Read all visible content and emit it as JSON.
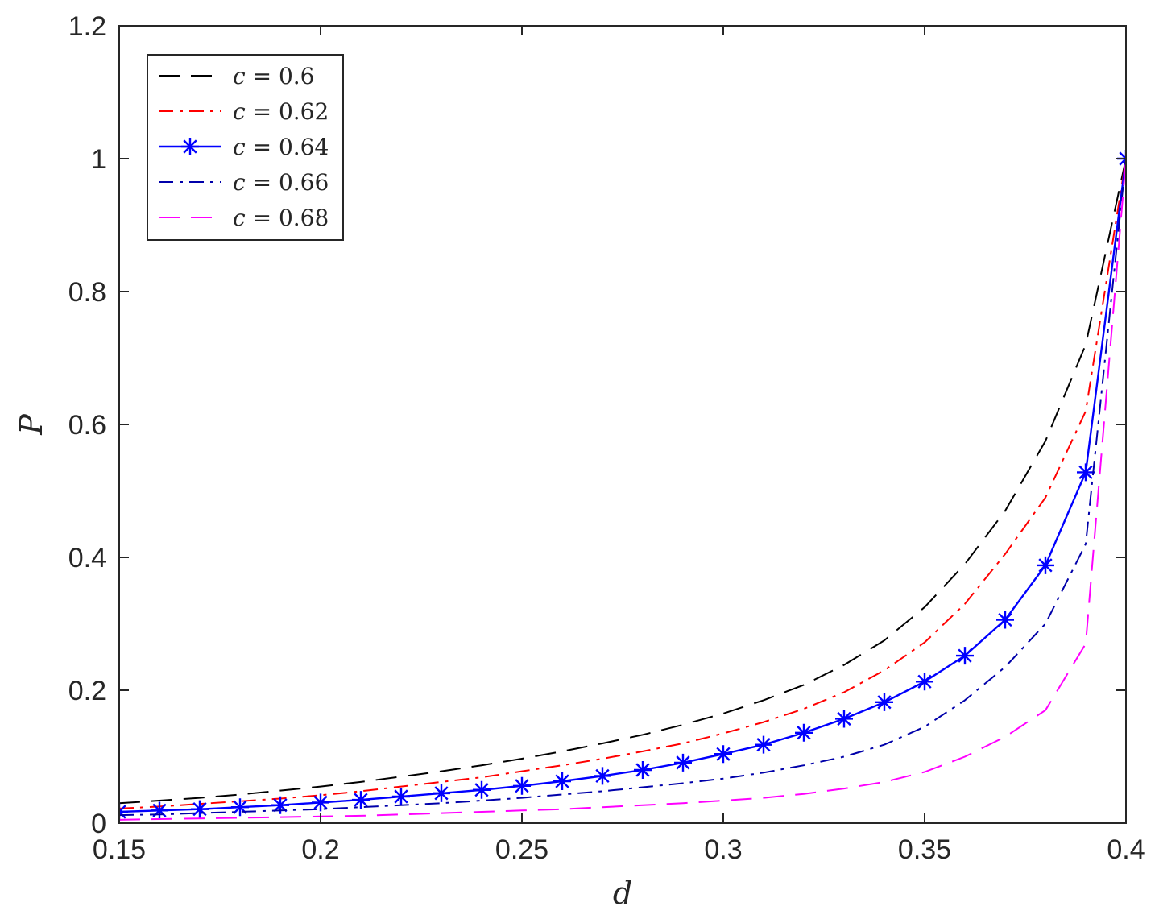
{
  "chart_data": {
    "type": "line",
    "title": "",
    "xlabel": "d",
    "ylabel": "P",
    "xlim": [
      0.15,
      0.4
    ],
    "ylim": [
      0,
      1.2
    ],
    "xticks": [
      "0.15",
      "0.2",
      "0.25",
      "0.3",
      "0.35",
      "0.4"
    ],
    "yticks": [
      "0",
      "0.2",
      "0.4",
      "0.6",
      "0.8",
      "1",
      "1.2"
    ],
    "grid": false,
    "legend_position": "top-left",
    "x": [
      0.15,
      0.16,
      0.17,
      0.18,
      0.19,
      0.2,
      0.21,
      0.22,
      0.23,
      0.24,
      0.25,
      0.26,
      0.27,
      0.28,
      0.29,
      0.3,
      0.31,
      0.32,
      0.33,
      0.34,
      0.35,
      0.36,
      0.37,
      0.38,
      0.39,
      0.4
    ],
    "series": [
      {
        "name": "c = 0.6",
        "color": "#000000",
        "style": "dashed",
        "values": [
          0.03,
          0.034,
          0.038,
          0.043,
          0.049,
          0.055,
          0.062,
          0.07,
          0.078,
          0.087,
          0.097,
          0.108,
          0.12,
          0.133,
          0.148,
          0.165,
          0.185,
          0.208,
          0.238,
          0.275,
          0.325,
          0.39,
          0.47,
          0.575,
          0.72,
          1.0
        ]
      },
      {
        "name": "c = 0.62",
        "color": "#ff0000",
        "style": "dashdot",
        "values": [
          0.022,
          0.025,
          0.029,
          0.033,
          0.037,
          0.042,
          0.048,
          0.055,
          0.062,
          0.069,
          0.078,
          0.087,
          0.097,
          0.108,
          0.12,
          0.135,
          0.152,
          0.172,
          0.197,
          0.23,
          0.272,
          0.33,
          0.405,
          0.49,
          0.62,
          1.0
        ]
      },
      {
        "name": "c = 0.64",
        "color": "#0000ff",
        "style": "solid-star",
        "values": [
          0.017,
          0.019,
          0.021,
          0.024,
          0.027,
          0.031,
          0.035,
          0.04,
          0.045,
          0.05,
          0.056,
          0.063,
          0.071,
          0.08,
          0.091,
          0.104,
          0.118,
          0.136,
          0.157,
          0.182,
          0.213,
          0.252,
          0.306,
          0.388,
          0.528,
          1.0
        ]
      },
      {
        "name": "c = 0.66",
        "color": "#0000aa",
        "style": "dashdot",
        "values": [
          0.012,
          0.013,
          0.015,
          0.017,
          0.019,
          0.021,
          0.024,
          0.027,
          0.03,
          0.034,
          0.038,
          0.043,
          0.048,
          0.054,
          0.06,
          0.067,
          0.076,
          0.087,
          0.1,
          0.118,
          0.145,
          0.185,
          0.235,
          0.3,
          0.42,
          1.0
        ]
      },
      {
        "name": "c = 0.68",
        "color": "#ff00ff",
        "style": "dashed",
        "values": [
          0.005,
          0.006,
          0.007,
          0.008,
          0.009,
          0.01,
          0.011,
          0.013,
          0.015,
          0.017,
          0.019,
          0.021,
          0.024,
          0.027,
          0.03,
          0.034,
          0.038,
          0.044,
          0.052,
          0.062,
          0.077,
          0.1,
          0.13,
          0.17,
          0.27,
          1.0
        ]
      }
    ]
  }
}
